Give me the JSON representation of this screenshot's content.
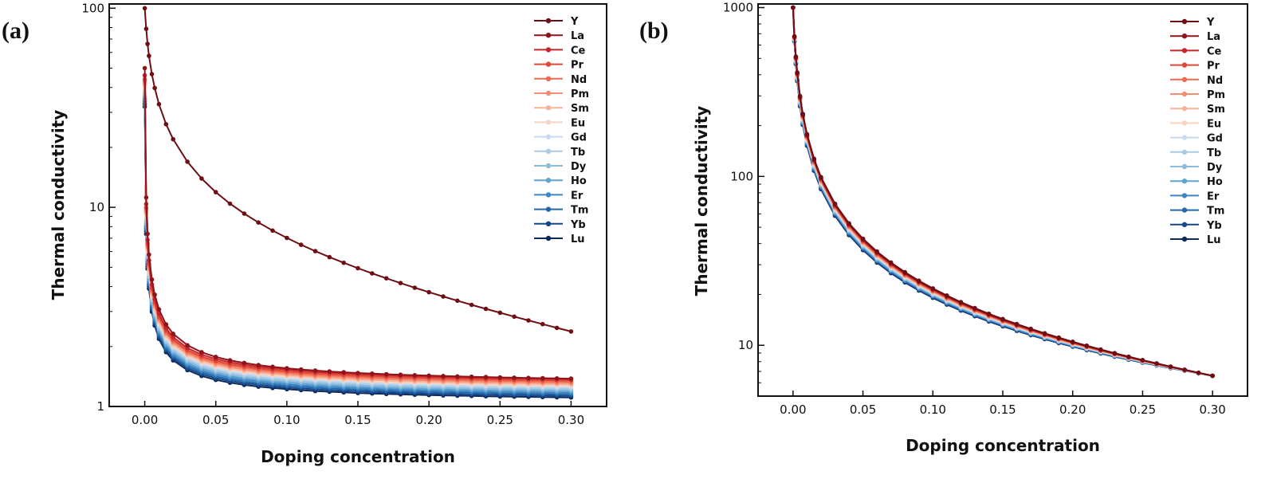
{
  "chart_data": [
    {
      "type": "line",
      "panel_label": "(a)",
      "xlabel": "Doping concentration",
      "ylabel": "Thermal conductivity",
      "xlim": [
        -0.025,
        0.325
      ],
      "ylim": [
        1,
        105
      ],
      "yscale": "log",
      "xticks": [
        0.0,
        0.05,
        0.1,
        0.15,
        0.2,
        0.25,
        0.3
      ],
      "xtick_labels": [
        "0.00",
        "0.05",
        "0.10",
        "0.15",
        "0.20",
        "0.25",
        "0.30"
      ],
      "yticks": [
        1,
        10,
        100
      ],
      "ytick_labels": [
        "1",
        "10",
        "100"
      ],
      "grid": false,
      "legend_position": "top-right",
      "series": [
        {
          "name": "Y",
          "color": "#6e0e14",
          "y_start": 100,
          "y_end": 2.38
        },
        {
          "name": "La",
          "color": "#8f1419",
          "y_start": 50,
          "y_end": 1.38
        },
        {
          "name": "Ce",
          "color": "#c4262c",
          "y_start": 46,
          "y_end": 1.37
        },
        {
          "name": "Pr",
          "color": "#e0453a",
          "y_start": 44,
          "y_end": 1.35
        },
        {
          "name": "Nd",
          "color": "#ee6b51",
          "y_start": 43,
          "y_end": 1.33
        },
        {
          "name": "Pm",
          "color": "#f58f72",
          "y_start": 42,
          "y_end": 1.31
        },
        {
          "name": "Sm",
          "color": "#f8b39c",
          "y_start": 41,
          "y_end": 1.29
        },
        {
          "name": "Eu",
          "color": "#fad3c3",
          "y_start": 40,
          "y_end": 1.27
        },
        {
          "name": "Gd",
          "color": "#c6dbef",
          "y_start": 39,
          "y_end": 1.25
        },
        {
          "name": "Tb",
          "color": "#a9cce3",
          "y_start": 38,
          "y_end": 1.23
        },
        {
          "name": "Dy",
          "color": "#8cbbdd",
          "y_start": 37,
          "y_end": 1.21
        },
        {
          "name": "Ho",
          "color": "#5fa3d3",
          "y_start": 36,
          "y_end": 1.19
        },
        {
          "name": "Er",
          "color": "#3d86c4",
          "y_start": 35,
          "y_end": 1.17
        },
        {
          "name": "Tm",
          "color": "#2367a8",
          "y_start": 34,
          "y_end": 1.15
        },
        {
          "name": "Yb",
          "color": "#16468a",
          "y_start": 33,
          "y_end": 1.13
        },
        {
          "name": "Lu",
          "color": "#0c2a5c",
          "y_start": 32,
          "y_end": 1.11
        }
      ]
    },
    {
      "type": "line",
      "panel_label": "(b)",
      "xlabel": "Doping concentration",
      "ylabel": "Thermal conductivity",
      "xlim": [
        -0.025,
        0.325
      ],
      "ylim": [
        5,
        1050
      ],
      "yscale": "log",
      "xticks": [
        0.0,
        0.05,
        0.1,
        0.15,
        0.2,
        0.25,
        0.3
      ],
      "xtick_labels": [
        "0.00",
        "0.05",
        "0.10",
        "0.15",
        "0.20",
        "0.25",
        "0.30"
      ],
      "yticks": [
        10,
        100,
        1000
      ],
      "ytick_labels": [
        "10",
        "100",
        "1000"
      ],
      "grid": false,
      "legend_position": "top-right",
      "series": [
        {
          "name": "Y",
          "color": "#6e0e14",
          "y_start": 1000,
          "y_end": 6.6
        },
        {
          "name": "La",
          "color": "#8f1419",
          "y_start": 1000,
          "y_end": 6.6
        },
        {
          "name": "Ce",
          "color": "#c4262c",
          "y_start": 1000,
          "y_end": 6.6
        },
        {
          "name": "Pr",
          "color": "#e0453a",
          "y_start": 1000,
          "y_end": 6.6
        },
        {
          "name": "Nd",
          "color": "#ee6b51",
          "y_start": 1000,
          "y_end": 6.6
        },
        {
          "name": "Pm",
          "color": "#f58f72",
          "y_start": 1000,
          "y_end": 6.6
        },
        {
          "name": "Sm",
          "color": "#f8b39c",
          "y_start": 1000,
          "y_end": 6.6
        },
        {
          "name": "Eu",
          "color": "#fad3c3",
          "y_start": 1000,
          "y_end": 6.6
        },
        {
          "name": "Gd",
          "color": "#c6dbef",
          "y_start": 1000,
          "y_end": 6.6
        },
        {
          "name": "Tb",
          "color": "#a9cce3",
          "y_start": 1000,
          "y_end": 6.6
        },
        {
          "name": "Dy",
          "color": "#8cbbdd",
          "y_start": 1000,
          "y_end": 6.6
        },
        {
          "name": "Ho",
          "color": "#5fa3d3",
          "y_start": 1000,
          "y_end": 6.6
        },
        {
          "name": "Er",
          "color": "#3d86c4",
          "y_start": 1000,
          "y_end": 6.6
        },
        {
          "name": "Tm",
          "color": "#2367a8",
          "y_start": 1000,
          "y_end": 6.6
        },
        {
          "name": "Yb",
          "color": "#16468a",
          "y_start": 1000,
          "y_end": 6.6
        },
        {
          "name": "Lu",
          "color": "#0c2a5c",
          "y_start": 1000,
          "y_end": 6.6
        }
      ]
    }
  ]
}
